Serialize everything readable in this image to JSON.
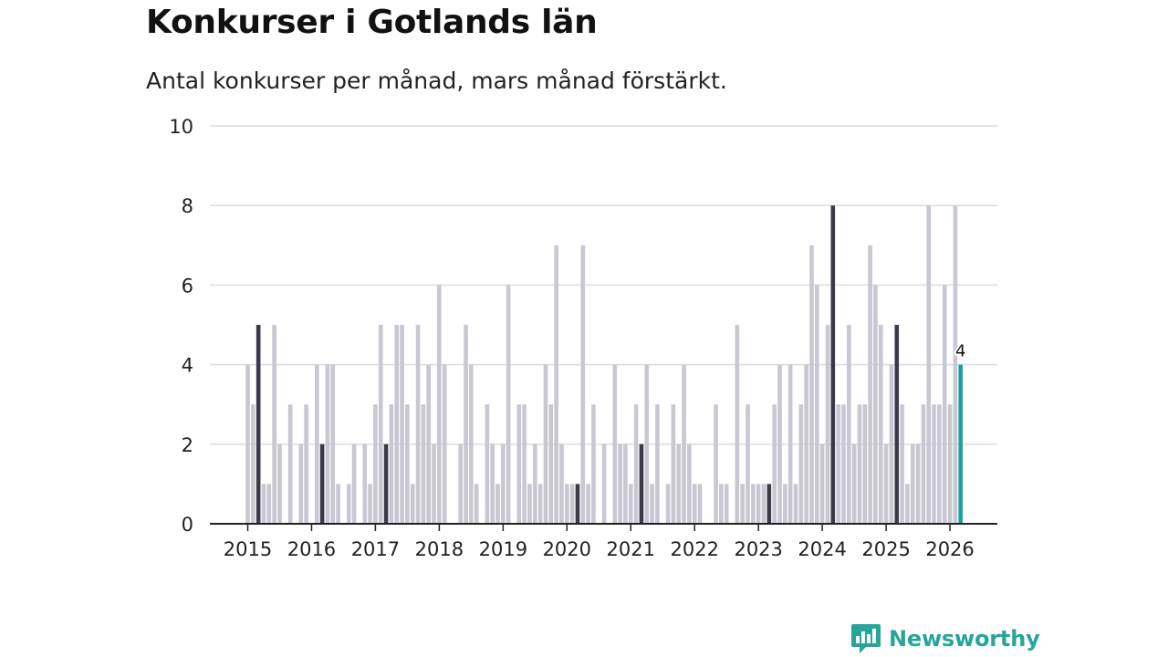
{
  "header": {
    "title": "Konkurser i Gotlands län",
    "subtitle": "Antal konkurser per månad, mars månad förstärkt."
  },
  "logo": {
    "text": "Newsworthy",
    "icon": "newsworthy-logo-icon"
  },
  "colors": {
    "bar": "#c8c7d3",
    "highlight": "#3b3a4a",
    "last": "#1aa39a",
    "grid": "#dcdce0",
    "axis": "#222222"
  },
  "chart_data": {
    "type": "bar",
    "title": "Konkurser i Gotlands län",
    "subtitle": "Antal konkurser per månad, mars månad förstärkt.",
    "xlabel": "",
    "ylabel": "",
    "ylim": [
      0,
      10
    ],
    "yticks": [
      0,
      2,
      4,
      6,
      8,
      10
    ],
    "start": "2015-01",
    "x_tick_labels": [
      "2015",
      "2016",
      "2017",
      "2018",
      "2019",
      "2020",
      "2021",
      "2022",
      "2023",
      "2024",
      "2025",
      "2026"
    ],
    "values": [
      4,
      3,
      5,
      1,
      1,
      5,
      2,
      0,
      3,
      0,
      2,
      3,
      0,
      4,
      2,
      4,
      4,
      1,
      0,
      1,
      2,
      0,
      2,
      1,
      3,
      5,
      2,
      3,
      5,
      5,
      3,
      1,
      5,
      3,
      4,
      2,
      6,
      4,
      0,
      0,
      2,
      5,
      4,
      1,
      0,
      3,
      2,
      1,
      2,
      6,
      0,
      3,
      3,
      1,
      2,
      1,
      4,
      3,
      7,
      2,
      1,
      1,
      1,
      7,
      1,
      3,
      0,
      2,
      0,
      4,
      2,
      2,
      1,
      3,
      2,
      4,
      1,
      3,
      0,
      1,
      3,
      2,
      4,
      2,
      1,
      1,
      0,
      0,
      3,
      1,
      1,
      0,
      5,
      1,
      3,
      1,
      1,
      1,
      1,
      3,
      4,
      1,
      4,
      1,
      3,
      4,
      7,
      6,
      2,
      5,
      8,
      3,
      3,
      5,
      2,
      3,
      3,
      7,
      6,
      5,
      2,
      4,
      5,
      3,
      1,
      2,
      2,
      3,
      8,
      3,
      3,
      6,
      3,
      8,
      4
    ],
    "highlight": "March of each year",
    "last_value_label": "4"
  }
}
